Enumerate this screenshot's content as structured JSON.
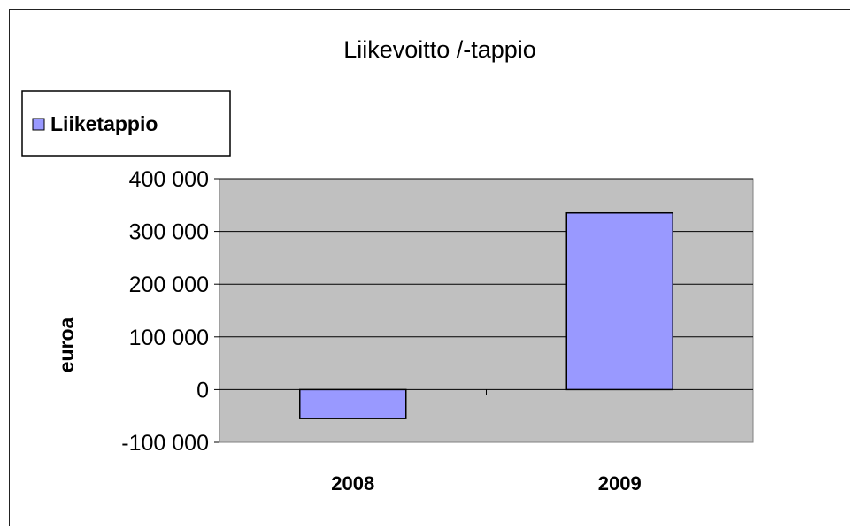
{
  "chart_data": {
    "type": "bar",
    "title": "Liikevoitto /-tappio",
    "ylabel": "euroa",
    "xlabel": "",
    "categories": [
      "2008",
      "2009"
    ],
    "series": [
      {
        "name": "Liiketappio",
        "values": [
          -55000,
          335000
        ],
        "color": "#9999ff"
      }
    ],
    "ylim": [
      -100000,
      400000
    ],
    "yticks": [
      -100000,
      0,
      100000,
      200000,
      300000,
      400000
    ],
    "ytick_labels": [
      "-100 000",
      "0",
      "100 000",
      "200 000",
      "300 000",
      "400 000"
    ],
    "grid": true,
    "legend_position": "top-left",
    "plot_background": "#c0c0c0"
  }
}
